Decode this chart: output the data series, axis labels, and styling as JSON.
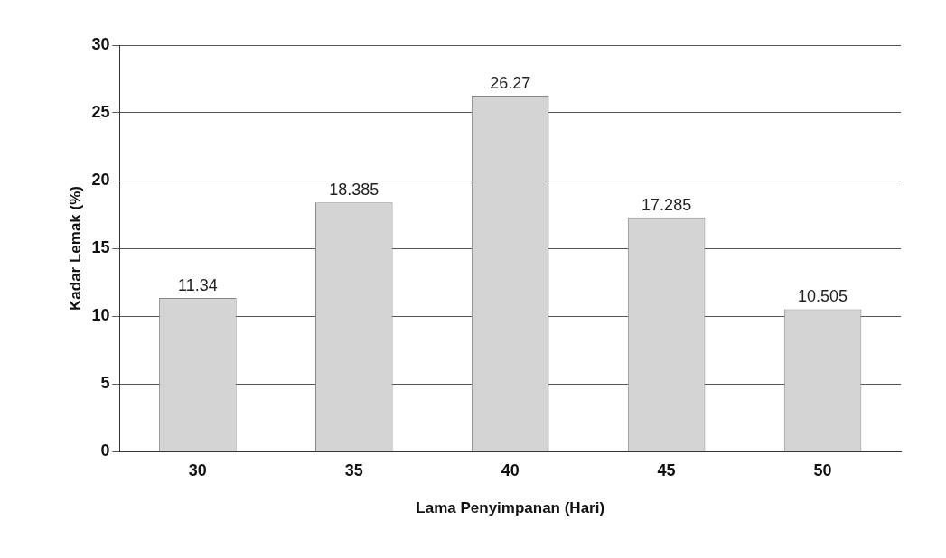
{
  "chart_data": {
    "type": "bar",
    "xlabel": "Lama Penyimpanan (Hari)",
    "ylabel": "Kadar Lemak (%)",
    "categories": [
      "30",
      "35",
      "40",
      "45",
      "50"
    ],
    "values": [
      11.34,
      18.385,
      26.27,
      17.285,
      10.505
    ],
    "color": "#d4d4d4",
    "ylim": [
      0,
      30
    ],
    "yticks": [
      0,
      5,
      10,
      15,
      20,
      25,
      30
    ],
    "grid": "y",
    "legend": false,
    "data_labels": true
  }
}
